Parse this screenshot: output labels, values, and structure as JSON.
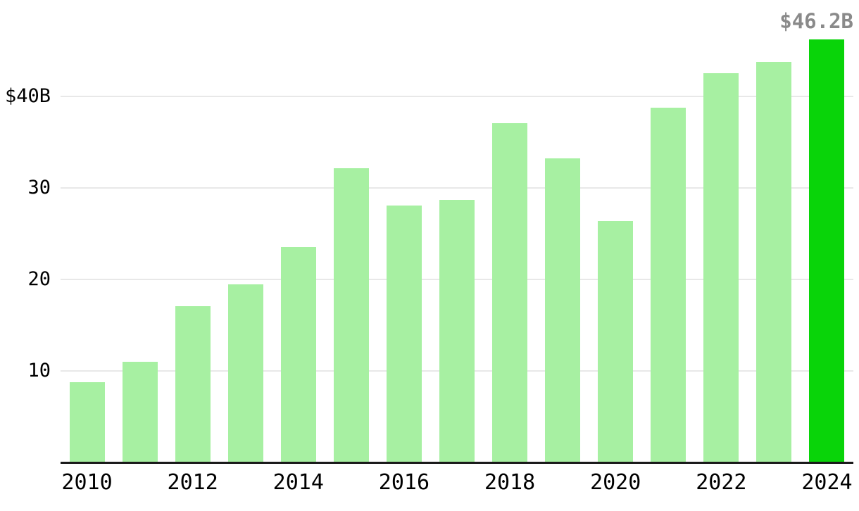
{
  "chart_data": {
    "type": "bar",
    "title": "",
    "xlabel": "",
    "ylabel": "",
    "categories": [
      "2010",
      "2011",
      "2012",
      "2013",
      "2014",
      "2015",
      "2016",
      "2017",
      "2018",
      "2019",
      "2020",
      "2021",
      "2022",
      "2023",
      "2024"
    ],
    "values": [
      8.7,
      10.9,
      17.0,
      19.4,
      23.5,
      32.1,
      28.0,
      28.6,
      37.0,
      33.2,
      26.3,
      38.7,
      42.5,
      43.7,
      46.2
    ],
    "highlight_index": 14,
    "ylim": [
      0,
      47
    ],
    "grid": true,
    "legend_position": "none",
    "yticks": [
      {
        "value": 10,
        "label": "10"
      },
      {
        "value": 20,
        "label": "20"
      },
      {
        "value": 30,
        "label": "30"
      },
      {
        "value": 40,
        "label": "$40B"
      }
    ],
    "xticks": [
      {
        "index": 0,
        "label": "2010"
      },
      {
        "index": 2,
        "label": "2012"
      },
      {
        "index": 4,
        "label": "2014"
      },
      {
        "index": 6,
        "label": "2016"
      },
      {
        "index": 8,
        "label": "2018"
      },
      {
        "index": 10,
        "label": "2020"
      },
      {
        "index": 12,
        "label": "2022"
      },
      {
        "index": 14,
        "label": "2024"
      }
    ],
    "annotation": {
      "text": "$46.2B",
      "value": 46.2,
      "category": "2024"
    },
    "colors": {
      "bar_fill": "#A7F0A2",
      "bar_highlight": "#09D409",
      "gridline": "#E8E8E8",
      "axis_line": "#1A1A1A",
      "tick_label": "#000000",
      "annotation_text": "#8A8A8A"
    }
  }
}
